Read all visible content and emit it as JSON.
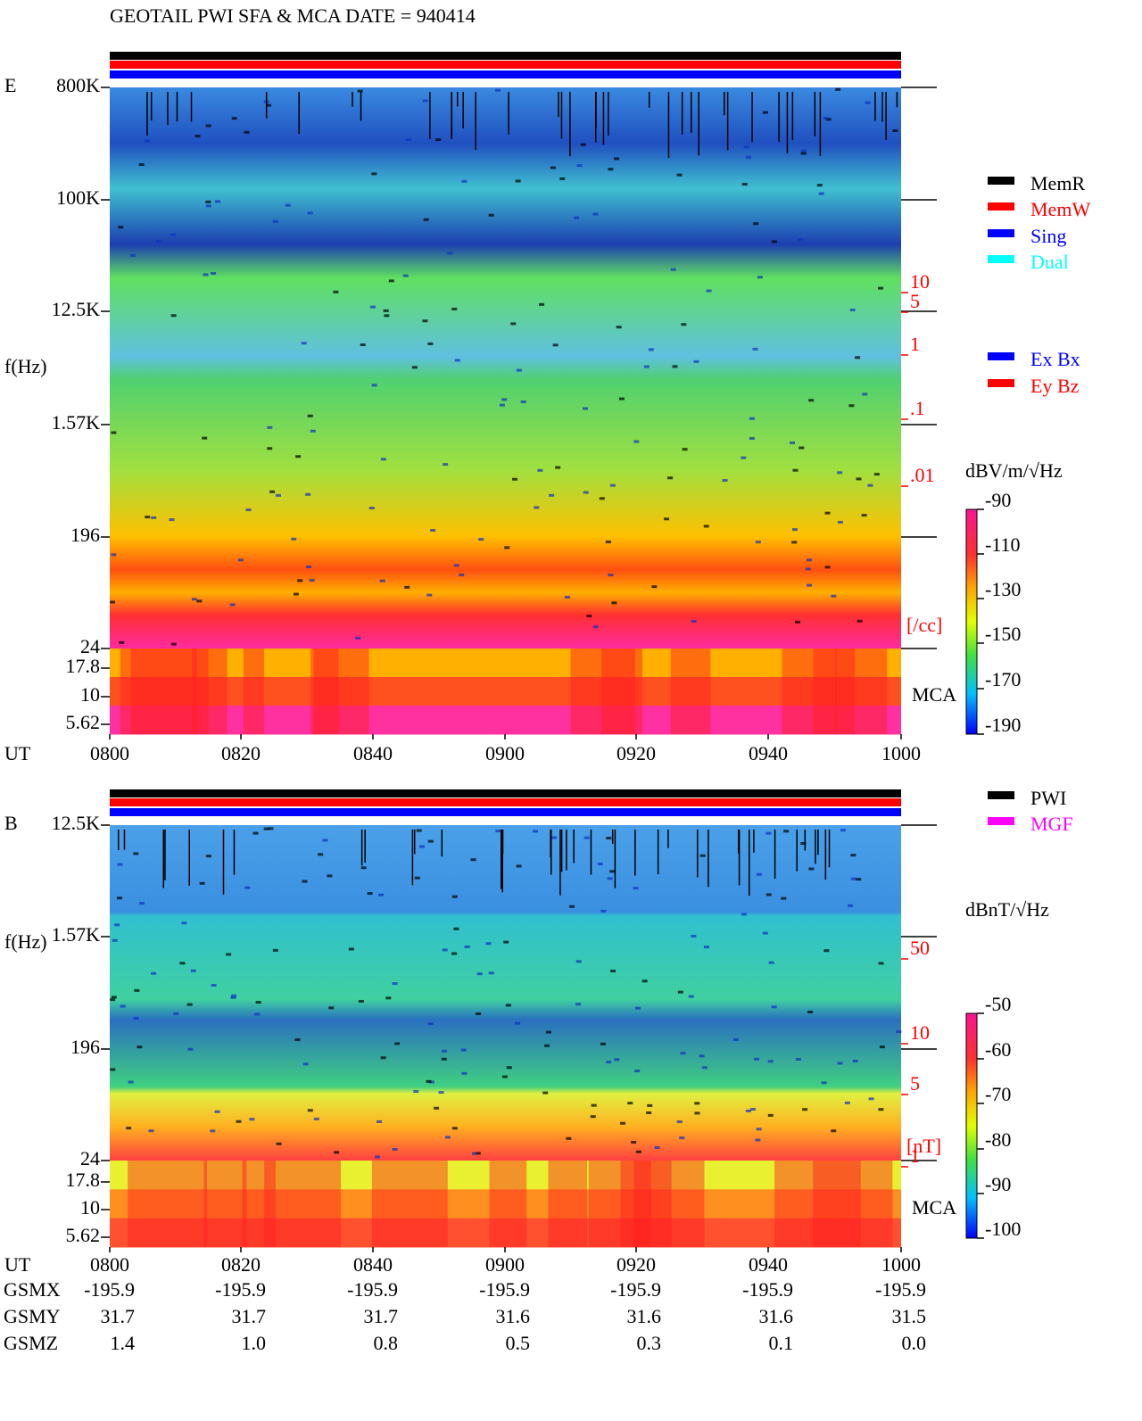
{
  "title": "GEOTAIL  PWI SFA & MCA    DATE = 940414",
  "panels": [
    {
      "label": "E",
      "ylabel": "f(Hz)",
      "yticks": [
        "800K",
        "100K",
        "12.5K",
        "1.57K",
        "196",
        "24",
        "17.8",
        "10",
        "5.62"
      ],
      "xlabel": "UT",
      "xticks": [
        "0800",
        "0820",
        "0840",
        "0900",
        "0920",
        "0940",
        "1000"
      ],
      "right_ticks": [
        "10",
        "5",
        "1",
        ".1",
        ".01"
      ],
      "right_unit": "[/cc]",
      "mca": "MCA",
      "colorbar_unit": "dBV/m/√Hz",
      "colorbar_ticks": [
        "-90",
        "-110",
        "-130",
        "-150",
        "-170",
        "-190"
      ],
      "legend": [
        {
          "name": "MemR",
          "color": "#000000"
        },
        {
          "name": "MemW",
          "color": "#ff0000"
        },
        {
          "name": "Sing",
          "color": "#0000ff"
        },
        {
          "name": "Dual",
          "color": "#00ffff"
        },
        {
          "name": "Ex Bx",
          "color": "#0000ff"
        },
        {
          "name": "Ey Bz",
          "color": "#ff0000"
        }
      ]
    },
    {
      "label": "B",
      "ylabel": "f(Hz)",
      "yticks": [
        "12.5K",
        "1.57K",
        "196",
        "24",
        "17.8",
        "10",
        "5.62"
      ],
      "xlabel": "UT",
      "xticks": [
        "0800",
        "0820",
        "0840",
        "0900",
        "0920",
        "0940",
        "1000"
      ],
      "right_ticks": [
        "50",
        "10",
        "5",
        "1"
      ],
      "right_unit": "[nT]",
      "mca": "MCA",
      "colorbar_unit": "dBnT/√Hz",
      "colorbar_ticks": [
        "-50",
        "-60",
        "-70",
        "-80",
        "-90",
        "-100"
      ],
      "legend": [
        {
          "name": "PWI",
          "color": "#000000"
        },
        {
          "name": "MGF",
          "color": "#ff00ff"
        }
      ]
    }
  ],
  "orbit": [
    {
      "label": "GSMX",
      "values": [
        "-195.9",
        "-195.9",
        "-195.9",
        "-195.9",
        "-195.9",
        "-195.9",
        "-195.9"
      ]
    },
    {
      "label": "GSMY",
      "values": [
        "31.7",
        "31.7",
        "31.7",
        "31.6",
        "31.6",
        "31.6",
        "31.5"
      ]
    },
    {
      "label": "GSMZ",
      "values": [
        "1.4",
        "1.0",
        "0.8",
        "0.5",
        "0.3",
        "0.1",
        "0.0"
      ]
    }
  ]
}
